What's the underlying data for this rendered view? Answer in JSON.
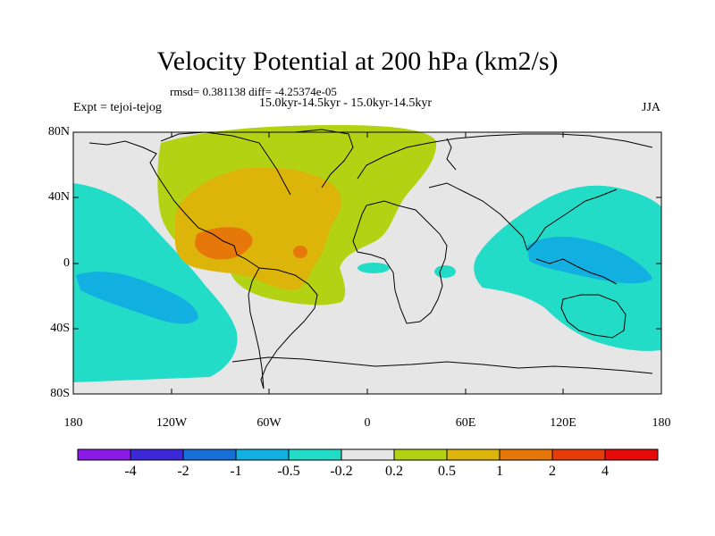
{
  "title": "Velocity Potential at 200 hPa (km2/s)",
  "stats_line": "rmsd= 0.381138 diff= -4.25374e-05",
  "period_line": "15.0kyr-14.5kyr - 15.0kyr-14.5kyr",
  "experiment": "Expt = tejoi-tejog",
  "season": "JJA",
  "lat_labels": [
    "80N",
    "40N",
    "0",
    "40S",
    "80S"
  ],
  "lon_labels": [
    "180",
    "120W",
    "60W",
    "0",
    "60E",
    "120E",
    "180"
  ],
  "colorbar": {
    "labels": [
      "-4",
      "-2",
      "-1",
      "-0.5",
      "-0.2",
      "0.2",
      "0.5",
      "1",
      "2",
      "4"
    ],
    "colors": [
      "#8c1ae6",
      "#3c28d8",
      "#1670d8",
      "#12b0e0",
      "#23dcc8",
      "#e6e6e6",
      "#b4d214",
      "#dcb40a",
      "#e6780a",
      "#e63c0a",
      "#e60a0a"
    ]
  },
  "colors": {
    "land_bg": "#e6e6e6",
    "coast": "#000000"
  }
}
